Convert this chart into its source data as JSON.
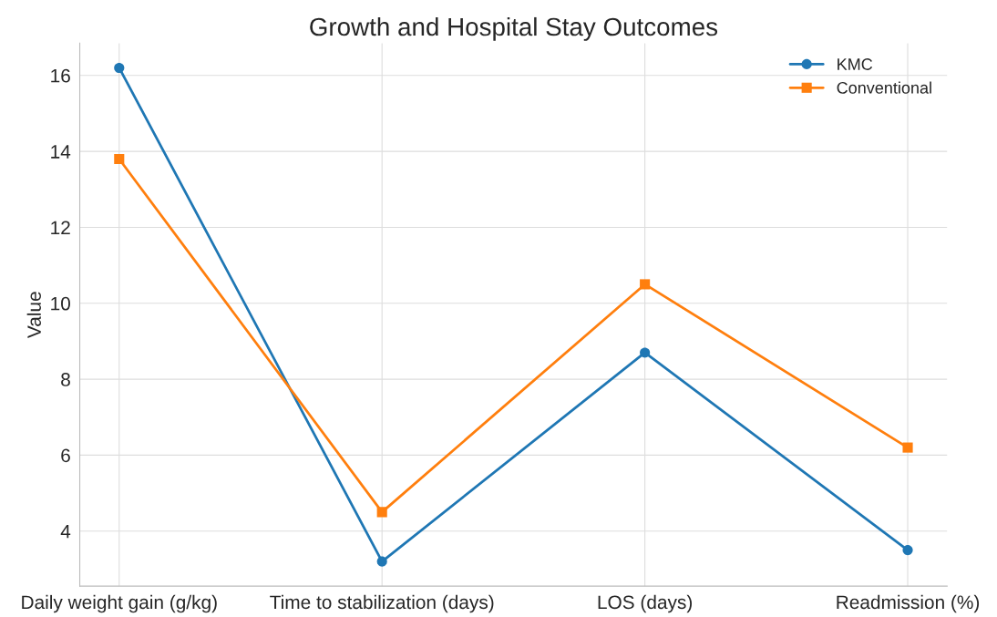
{
  "chart_data": {
    "type": "line",
    "title": "Growth and Hospital Stay Outcomes",
    "ylabel": "Value",
    "categories": [
      "Daily weight gain (g/kg)",
      "Time to stabilization (days)",
      "LOS (days)",
      "Readmission (%)"
    ],
    "series": [
      {
        "name": "KMC",
        "color": "#1f77b4",
        "marker": "circle",
        "values": [
          16.2,
          3.2,
          8.7,
          3.5
        ]
      },
      {
        "name": "Conventional",
        "color": "#ff7f0e",
        "marker": "square",
        "values": [
          13.8,
          4.5,
          10.5,
          6.2
        ]
      }
    ],
    "ylim": [
      2.55,
      16.85
    ],
    "yticks": [
      4,
      6,
      8,
      10,
      12,
      14,
      16
    ],
    "grid": true,
    "legend": "top right",
    "line_style": "solid"
  }
}
